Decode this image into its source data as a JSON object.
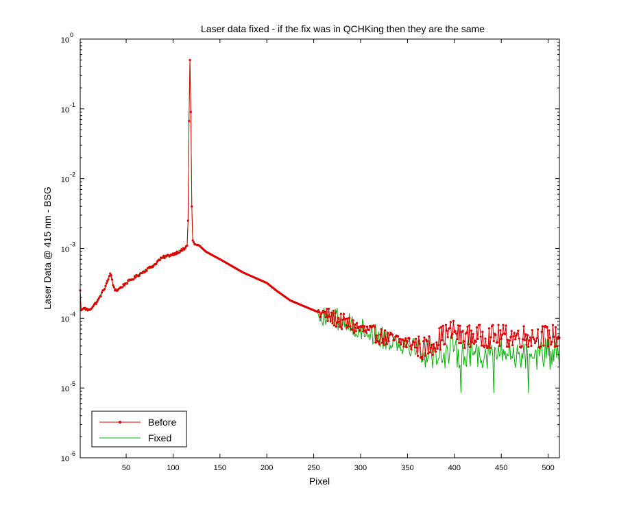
{
  "chart_data": {
    "type": "line",
    "title": "Laser data fixed - if the fix was in QCHKing then they are the same",
    "xlabel": "Pixel",
    "ylabel": "Laser Data @ 415 nm - BSG",
    "xlim": [
      1,
      512
    ],
    "ylim": [
      1e-06,
      1
    ],
    "yscale": "log",
    "x_ticks": [
      50,
      100,
      150,
      200,
      250,
      300,
      350,
      400,
      450,
      500
    ],
    "y_ticks": [
      {
        "value": 1e-06,
        "base": "10",
        "exp": "-6"
      },
      {
        "value": 1e-05,
        "base": "10",
        "exp": "-5"
      },
      {
        "value": 0.0001,
        "base": "10",
        "exp": "-4"
      },
      {
        "value": 0.001,
        "base": "10",
        "exp": "-3"
      },
      {
        "value": 0.01,
        "base": "10",
        "exp": "-2"
      },
      {
        "value": 0.1,
        "base": "10",
        "exp": "-1"
      },
      {
        "value": 1,
        "base": "10",
        "exp": "0"
      }
    ],
    "grid": false,
    "legend_position": "bottom-left",
    "series": [
      {
        "name": "Before",
        "color": "#e00000",
        "marker": "dot",
        "anchors": [
          [
            1,
            0.00025
          ],
          [
            2,
            0.00013
          ],
          [
            5,
            0.00014
          ],
          [
            10,
            0.00013
          ],
          [
            15,
            0.00015
          ],
          [
            20,
            0.00018
          ],
          [
            25,
            0.00024
          ],
          [
            30,
            0.00033
          ],
          [
            32,
            0.0004
          ],
          [
            33,
            0.00045
          ],
          [
            34,
            0.0004
          ],
          [
            36,
            0.0003
          ],
          [
            38,
            0.00026
          ],
          [
            40,
            0.00025
          ],
          [
            45,
            0.00028
          ],
          [
            50,
            0.00032
          ],
          [
            60,
            0.00039
          ],
          [
            70,
            0.00048
          ],
          [
            80,
            0.00058
          ],
          [
            85,
            0.00068
          ],
          [
            90,
            0.00075
          ],
          [
            100,
            0.00083
          ],
          [
            108,
            0.00092
          ],
          [
            112,
            0.00098
          ],
          [
            115,
            0.0011
          ],
          [
            116,
            0.0025
          ],
          [
            117,
            0.067
          ],
          [
            118,
            0.5
          ],
          [
            119,
            0.09
          ],
          [
            120,
            0.004
          ],
          [
            121,
            0.0013
          ],
          [
            123,
            0.00115
          ],
          [
            128,
            0.0011
          ],
          [
            135,
            0.0009
          ],
          [
            150,
            0.0007
          ],
          [
            175,
            0.00045
          ],
          [
            200,
            0.00032
          ],
          [
            210,
            0.00025
          ],
          [
            225,
            0.00018
          ],
          [
            250,
            0.00013
          ],
          [
            275,
            9.5e-05
          ],
          [
            300,
            7e-05
          ],
          [
            330,
            5e-05
          ],
          [
            360,
            4.2e-05
          ],
          [
            365,
            3.5e-05
          ],
          [
            375,
            4.2e-05
          ],
          [
            390,
            5.8e-05
          ],
          [
            400,
            6.7e-05
          ],
          [
            405,
            5.5e-05
          ],
          [
            512,
            5.5e-05
          ]
        ],
        "noise_start": 255,
        "noise_amp": 0.12
      },
      {
        "name": "Fixed",
        "color": "#00b000",
        "marker": "none",
        "anchors": [
          [
            1,
            0.00025
          ],
          [
            2,
            0.00013
          ],
          [
            5,
            0.00014
          ],
          [
            10,
            0.00013
          ],
          [
            15,
            0.00015
          ],
          [
            20,
            0.00018
          ],
          [
            25,
            0.00024
          ],
          [
            30,
            0.00033
          ],
          [
            32,
            0.0004
          ],
          [
            33,
            0.00045
          ],
          [
            34,
            0.0004
          ],
          [
            36,
            0.0003
          ],
          [
            38,
            0.00026
          ],
          [
            40,
            0.00025
          ],
          [
            45,
            0.00028
          ],
          [
            50,
            0.00032
          ],
          [
            60,
            0.00039
          ],
          [
            70,
            0.00048
          ],
          [
            80,
            0.00058
          ],
          [
            85,
            0.00068
          ],
          [
            90,
            0.00075
          ],
          [
            100,
            0.00083
          ],
          [
            108,
            0.00092
          ],
          [
            112,
            0.00098
          ],
          [
            115,
            0.0011
          ],
          [
            116,
            0.0025
          ],
          [
            117,
            0.067
          ],
          [
            118,
            0.5
          ],
          [
            119,
            0.09
          ],
          [
            120,
            0.004
          ],
          [
            121,
            0.0013
          ],
          [
            123,
            0.00115
          ],
          [
            128,
            0.0011
          ],
          [
            135,
            0.0009
          ],
          [
            150,
            0.0007
          ],
          [
            175,
            0.00045
          ],
          [
            200,
            0.00032
          ],
          [
            210,
            0.00025
          ],
          [
            225,
            0.00018
          ],
          [
            250,
            0.00013
          ],
          [
            275,
            9.5e-05
          ],
          [
            300,
            7e-05
          ],
          [
            330,
            5e-05
          ],
          [
            360,
            4e-05
          ],
          [
            365,
            3.2e-05
          ],
          [
            400,
            3.3e-05
          ],
          [
            512,
            3e-05
          ]
        ],
        "noise_start": 255,
        "noise_amp": 0.17,
        "dips": [
          [
            407,
            8.5e-06
          ],
          [
            442,
            8.5e-06
          ],
          [
            479,
            8.5e-06
          ]
        ]
      }
    ]
  }
}
